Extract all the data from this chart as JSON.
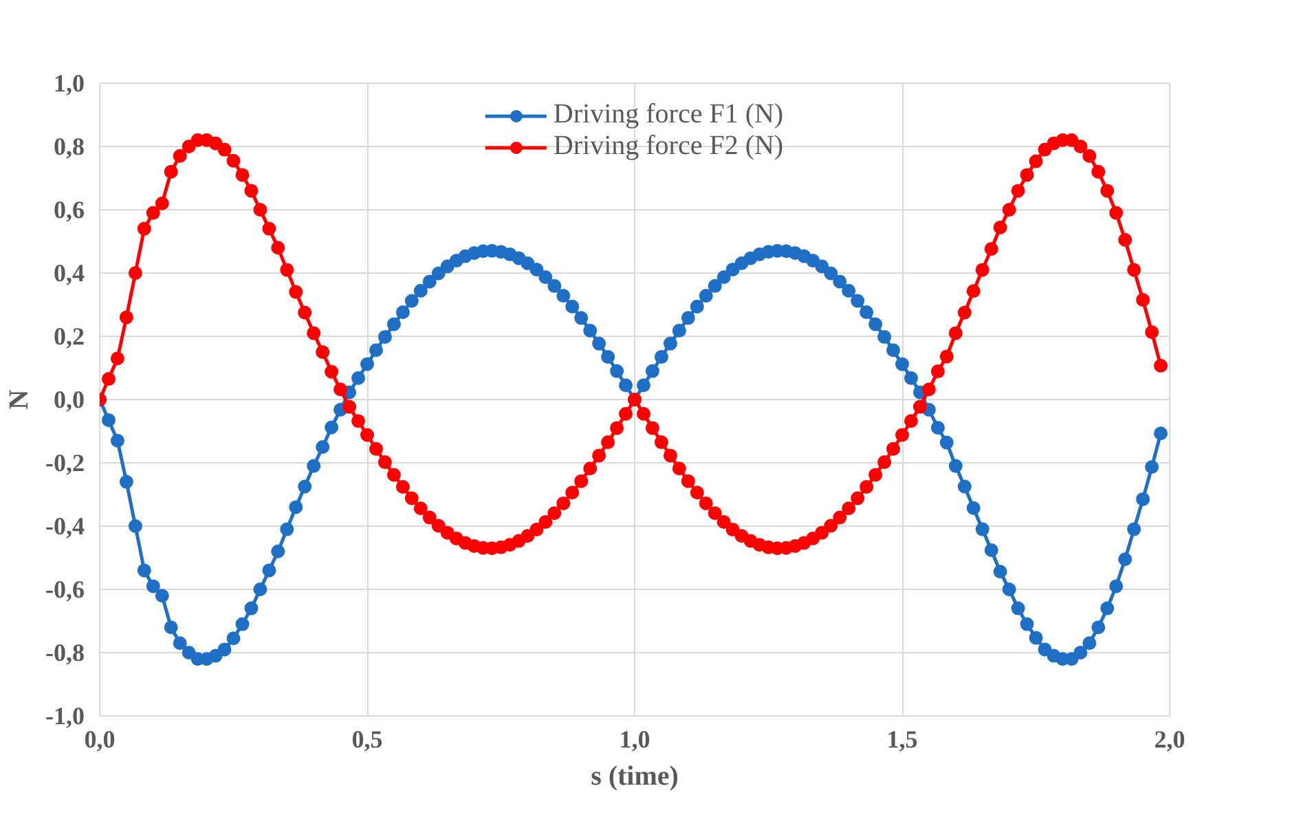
{
  "chart_data": {
    "type": "line",
    "xlabel": "s (time)",
    "ylabel": "N",
    "x": [
      0,
      0.0167,
      0.0333,
      0.05,
      0.0667,
      0.0833,
      0.1,
      0.1167,
      0.1333,
      0.15,
      0.1667,
      0.1833,
      0.2,
      0.2167,
      0.2333,
      0.25,
      0.2667,
      0.2833,
      0.3,
      0.3167,
      0.3333,
      0.35,
      0.3667,
      0.3833,
      0.4,
      0.4167,
      0.4333,
      0.45,
      0.4667,
      0.4833,
      0.5,
      0.5167,
      0.5333,
      0.55,
      0.5667,
      0.5833,
      0.6,
      0.6167,
      0.6333,
      0.65,
      0.6667,
      0.6833,
      0.7,
      0.7167,
      0.7333,
      0.75,
      0.7667,
      0.7833,
      0.8,
      0.8167,
      0.8333,
      0.85,
      0.8667,
      0.8833,
      0.9,
      0.9167,
      0.9333,
      0.95,
      0.9667,
      0.9833,
      1,
      1.0167,
      1.0333,
      1.05,
      1.0667,
      1.0833,
      1.1,
      1.1167,
      1.1333,
      1.15,
      1.1667,
      1.1833,
      1.2,
      1.2167,
      1.2333,
      1.25,
      1.2667,
      1.2833,
      1.3,
      1.3167,
      1.3333,
      1.35,
      1.3667,
      1.3833,
      1.4,
      1.4167,
      1.4333,
      1.45,
      1.4667,
      1.4833,
      1.5,
      1.5167,
      1.5333,
      1.55,
      1.5667,
      1.5833,
      1.6,
      1.6167,
      1.6333,
      1.65,
      1.6667,
      1.6833,
      1.7,
      1.7167,
      1.7333,
      1.75,
      1.7667,
      1.7833,
      1.8,
      1.8167,
      1.8333,
      1.85,
      1.8667,
      1.8833,
      1.9,
      1.9167,
      1.9333,
      1.95,
      1.9667,
      1.9833
    ],
    "series": [
      {
        "name": "Driving force F1 (N)",
        "color": "#1f6fc5",
        "values": [
          0,
          -0.065,
          -0.13,
          -0.26,
          -0.4,
          -0.54,
          -0.59,
          -0.62,
          -0.72,
          -0.77,
          -0.8,
          -0.82,
          -0.82,
          -0.81,
          -0.79,
          -0.755,
          -0.71,
          -0.66,
          -0.6,
          -0.54,
          -0.48,
          -0.41,
          -0.34,
          -0.275,
          -0.21,
          -0.15,
          -0.088,
          -0.032,
          0.023,
          0.068,
          0.112,
          0.156,
          0.198,
          0.238,
          0.276,
          0.312,
          0.344,
          0.373,
          0.399,
          0.421,
          0.439,
          0.453,
          0.463,
          0.469,
          0.47,
          0.467,
          0.459,
          0.447,
          0.431,
          0.411,
          0.387,
          0.359,
          0.328,
          0.294,
          0.258,
          0.218,
          0.177,
          0.135,
          0.09,
          0.045,
          0,
          0.045,
          0.09,
          0.135,
          0.177,
          0.218,
          0.258,
          0.294,
          0.328,
          0.359,
          0.387,
          0.411,
          0.431,
          0.447,
          0.459,
          0.467,
          0.47,
          0.469,
          0.463,
          0.453,
          0.439,
          0.421,
          0.399,
          0.373,
          0.344,
          0.312,
          0.276,
          0.238,
          0.198,
          0.156,
          0.112,
          0.068,
          0.023,
          -0.032,
          -0.089,
          -0.136,
          -0.21,
          -0.275,
          -0.343,
          -0.41,
          -0.476,
          -0.544,
          -0.6,
          -0.66,
          -0.71,
          -0.753,
          -0.79,
          -0.81,
          -0.82,
          -0.82,
          -0.8,
          -0.77,
          -0.72,
          -0.66,
          -0.59,
          -0.505,
          -0.41,
          -0.315,
          -0.213,
          -0.107
        ]
      },
      {
        "name": "Driving force F2 (N)",
        "color": "#ff0000",
        "values": [
          0,
          0.065,
          0.13,
          0.26,
          0.4,
          0.54,
          0.59,
          0.62,
          0.72,
          0.77,
          0.8,
          0.82,
          0.82,
          0.81,
          0.79,
          0.755,
          0.71,
          0.66,
          0.6,
          0.54,
          0.48,
          0.41,
          0.34,
          0.275,
          0.21,
          0.15,
          0.088,
          0.032,
          -0.023,
          -0.068,
          -0.112,
          -0.156,
          -0.198,
          -0.238,
          -0.276,
          -0.312,
          -0.344,
          -0.373,
          -0.399,
          -0.421,
          -0.439,
          -0.453,
          -0.463,
          -0.469,
          -0.47,
          -0.467,
          -0.459,
          -0.447,
          -0.431,
          -0.411,
          -0.387,
          -0.359,
          -0.328,
          -0.294,
          -0.258,
          -0.218,
          -0.177,
          -0.135,
          -0.09,
          -0.045,
          0,
          -0.045,
          -0.09,
          -0.135,
          -0.177,
          -0.218,
          -0.258,
          -0.294,
          -0.328,
          -0.359,
          -0.387,
          -0.411,
          -0.431,
          -0.447,
          -0.459,
          -0.467,
          -0.47,
          -0.469,
          -0.463,
          -0.453,
          -0.439,
          -0.421,
          -0.399,
          -0.373,
          -0.344,
          -0.312,
          -0.276,
          -0.238,
          -0.198,
          -0.156,
          -0.112,
          -0.068,
          -0.023,
          0.032,
          0.089,
          0.136,
          0.21,
          0.275,
          0.343,
          0.41,
          0.476,
          0.544,
          0.6,
          0.66,
          0.71,
          0.753,
          0.79,
          0.81,
          0.82,
          0.82,
          0.8,
          0.77,
          0.72,
          0.66,
          0.59,
          0.505,
          0.41,
          0.315,
          0.213,
          0.107
        ]
      }
    ],
    "xlim": [
      0,
      2
    ],
    "ylim": [
      -1,
      1
    ],
    "xticks": [
      {
        "value": 0,
        "label": "0,0"
      },
      {
        "value": 0.5,
        "label": "0,5"
      },
      {
        "value": 1,
        "label": "1,0"
      },
      {
        "value": 1.5,
        "label": "1,5"
      },
      {
        "value": 2,
        "label": "2,0"
      }
    ],
    "yticks": [
      {
        "value": -1,
        "label": "-1,0"
      },
      {
        "value": -0.8,
        "label": "-0,8"
      },
      {
        "value": -0.6,
        "label": "-0,6"
      },
      {
        "value": -0.4,
        "label": "-0,4"
      },
      {
        "value": -0.2,
        "label": "-0,2"
      },
      {
        "value": 0,
        "label": "0,0"
      },
      {
        "value": 0.2,
        "label": "0,2"
      },
      {
        "value": 0.4,
        "label": "0,4"
      },
      {
        "value": 0.6,
        "label": "0,6"
      },
      {
        "value": 0.8,
        "label": "0,8"
      },
      {
        "value": 1,
        "label": "1,0"
      }
    ],
    "grid": true,
    "legend": "top",
    "marker": "circle",
    "line_style": "solid"
  }
}
